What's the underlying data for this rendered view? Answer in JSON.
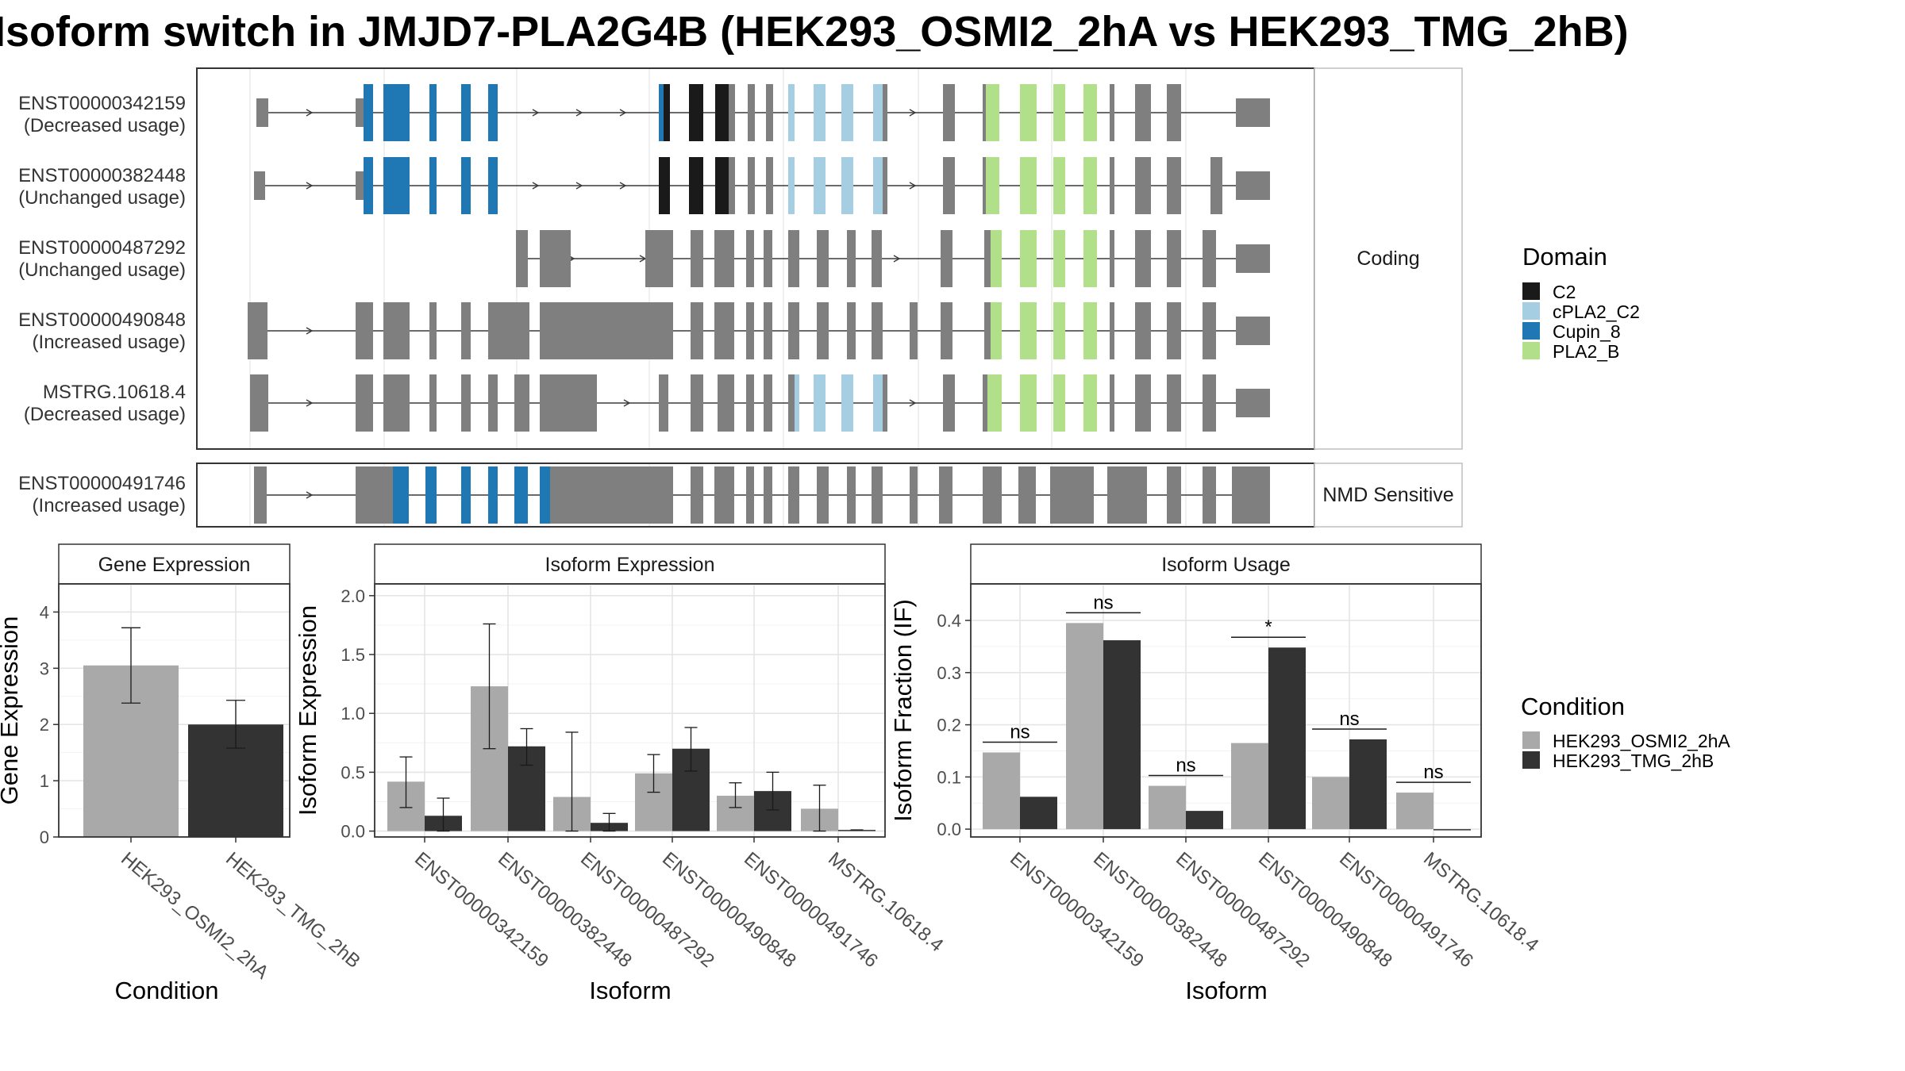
{
  "title": "Isoform switch in JMJD7-PLA2G4B (HEK293_OSMI2_2hA vs HEK293_TMG_2hB)",
  "colors": {
    "exon": "#7f7f7f",
    "condition_1": "#a9a9a9",
    "condition_2": "#333333",
    "domain_C2": "#1a1a1a",
    "domain_cPLA2_C2": "#a6cee3",
    "domain_Cupin_8": "#1f78b4",
    "domain_PLA2_B": "#b2df8a"
  },
  "structure_panel": {
    "facets": [
      {
        "label": "Coding",
        "transcripts": [
          {
            "id": "ENST00000342159",
            "usage": "(Decreased usage)"
          },
          {
            "id": "ENST00000382448",
            "usage": "(Unchanged usage)"
          },
          {
            "id": "ENST00000487292",
            "usage": "(Unchanged usage)"
          },
          {
            "id": "ENST00000490848",
            "usage": "(Increased usage)"
          },
          {
            "id": "MSTRG.10618.4",
            "usage": "(Decreased usage)"
          }
        ]
      },
      {
        "label": "NMD Sensitive",
        "transcripts": [
          {
            "id": "ENST00000491746",
            "usage": "(Increased usage)"
          }
        ]
      }
    ]
  },
  "legend_domain": {
    "title": "Domain",
    "items": [
      {
        "label": "C2",
        "color": "#1a1a1a"
      },
      {
        "label": "cPLA2_C2",
        "color": "#a6cee3"
      },
      {
        "label": "Cupin_8",
        "color": "#1f78b4"
      },
      {
        "label": "PLA2_B",
        "color": "#b2df8a"
      }
    ]
  },
  "legend_condition": {
    "title": "Condition",
    "items": [
      {
        "label": "HEK293_OSMI2_2hA",
        "color": "#a9a9a9"
      },
      {
        "label": "HEK293_TMG_2hB",
        "color": "#333333"
      }
    ]
  },
  "chart_data": [
    {
      "type": "bar",
      "title": "Gene Expression",
      "xlabel": "Condition",
      "ylabel": "Gene Expression",
      "categories": [
        "HEK293_OSMI2_2hA",
        "HEK293_TMG_2hB"
      ],
      "values": [
        3.05,
        2.0
      ],
      "error_low": [
        2.38,
        1.58
      ],
      "error_high": [
        3.72,
        2.43
      ],
      "ylim": [
        0,
        4.5
      ],
      "yticks": [
        "0",
        "1",
        "2",
        "3",
        "4"
      ],
      "grid": true
    },
    {
      "type": "bar",
      "title": "Isoform Expression",
      "xlabel": "Isoform",
      "ylabel": "Isoform Expression",
      "categories": [
        "ENST00000342159",
        "ENST00000382448",
        "ENST00000487292",
        "ENST00000490848",
        "ENST00000491746",
        "MSTRG.10618.4"
      ],
      "series": [
        {
          "name": "HEK293_OSMI2_2hA",
          "values": [
            0.42,
            1.23,
            0.29,
            0.49,
            0.3,
            0.19
          ],
          "error_low": [
            0.2,
            0.7,
            0.0,
            0.33,
            0.2,
            0.0
          ],
          "error_high": [
            0.63,
            1.76,
            0.84,
            0.65,
            0.41,
            0.39
          ]
        },
        {
          "name": "HEK293_TMG_2hB",
          "values": [
            0.13,
            0.72,
            0.07,
            0.7,
            0.34,
            0.01
          ],
          "error_low": [
            0.0,
            0.56,
            0.0,
            0.51,
            0.18,
            0.01
          ],
          "error_high": [
            0.28,
            0.87,
            0.15,
            0.88,
            0.5,
            0.01
          ]
        }
      ],
      "ylim": [
        -0.05,
        2.1
      ],
      "yticks": [
        "0.0",
        "0.5",
        "1.0",
        "1.5",
        "2.0"
      ],
      "grid": true
    },
    {
      "type": "bar",
      "title": "Isoform Usage",
      "xlabel": "Isoform",
      "ylabel": "Isoform Fraction (IF)",
      "categories": [
        "ENST00000342159",
        "ENST00000382448",
        "ENST00000487292",
        "ENST00000490848",
        "ENST00000491746",
        "MSTRG.10618.4"
      ],
      "series": [
        {
          "name": "HEK293_OSMI2_2hA",
          "values": [
            0.147,
            0.395,
            0.083,
            0.165,
            0.1,
            0.07
          ]
        },
        {
          "name": "HEK293_TMG_2hB",
          "values": [
            0.062,
            0.362,
            0.035,
            0.348,
            0.172,
            0.0
          ]
        }
      ],
      "significance": [
        "ns",
        "ns",
        "ns",
        "*",
        "ns",
        "ns"
      ],
      "ylim": [
        -0.015,
        0.47
      ],
      "yticks": [
        "0.0",
        "0.1",
        "0.2",
        "0.3",
        "0.4"
      ],
      "grid": true
    }
  ]
}
